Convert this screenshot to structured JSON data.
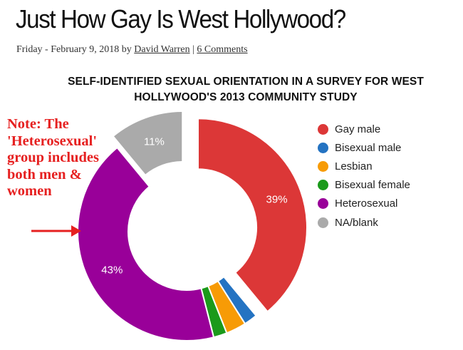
{
  "article": {
    "title": "Just How Gay Is West Hollywood?",
    "date_prefix": "Friday - February 9, 2018 by ",
    "author": "David Warren",
    "separator": " | ",
    "comments": "6 Comments"
  },
  "note": {
    "text": "Note: The 'Heterosexual' group includes both men & women"
  },
  "chart_data": {
    "type": "pie",
    "donut": true,
    "title": "SELF-IDENTIFIED SEXUAL ORIENTATION IN A SURVEY FOR WEST HOLLYWOOD'S 2013 COMMUNITY STUDY",
    "legend_position": "right",
    "exploded": [
      "Gay male",
      "NA/blank"
    ],
    "slices": [
      {
        "label": "Gay male",
        "value": 39,
        "color": "#dc3737",
        "data_label": "39%"
      },
      {
        "label": "Bisexual male",
        "value": 2,
        "color": "#2473c2",
        "data_label": ""
      },
      {
        "label": "Lesbian",
        "value": 3,
        "color": "#f79b06",
        "data_label": ""
      },
      {
        "label": "Bisexual female",
        "value": 2,
        "color": "#1b9a1b",
        "data_label": ""
      },
      {
        "label": "Heterosexual",
        "value": 43,
        "color": "#990099",
        "data_label": "43%"
      },
      {
        "label": "NA/blank",
        "value": 11,
        "color": "#aaaaaa",
        "data_label": "11%"
      }
    ]
  },
  "colors": {
    "note": "#e62020",
    "arrow": "#e62020"
  }
}
